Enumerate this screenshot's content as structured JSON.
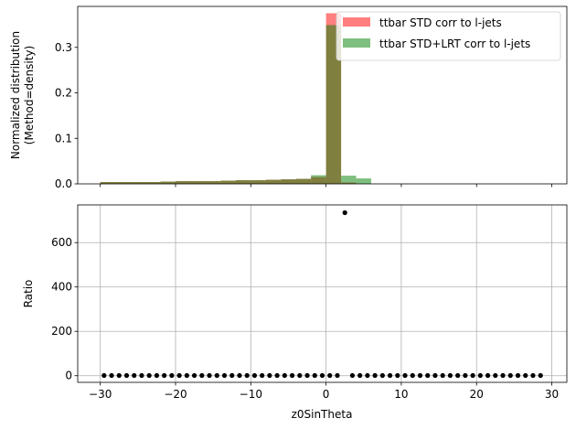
{
  "chart_data": [
    {
      "type": "bar",
      "ylabel": "Normalized distribution\n(Method=density)",
      "xlim": [
        -33,
        32
      ],
      "ylim": [
        0,
        0.39
      ],
      "yticks": [
        0.0,
        0.1,
        0.2,
        0.3
      ],
      "ytick_labels": [
        "0.0",
        "0.1",
        "0.2",
        "0.3"
      ],
      "legend": {
        "placement": "top-right"
      },
      "bin_width": 2,
      "series": [
        {
          "name": "ttbar STD corr to l-jets",
          "color": "#ff0000",
          "alpha": 0.5,
          "bin_edges": [
            -30,
            -28,
            -26,
            -24,
            -22,
            -20,
            -18,
            -16,
            -14,
            -12,
            -10,
            -8,
            -6,
            -4,
            -2,
            0,
            2,
            4
          ],
          "values": [
            0.004,
            0.004,
            0.004,
            0.004,
            0.005,
            0.006,
            0.006,
            0.006,
            0.007,
            0.008,
            0.008,
            0.009,
            0.01,
            0.011,
            0.015,
            0.375,
            0.003
          ]
        },
        {
          "name": "ttbar STD+LRT corr to l-jets",
          "color": "#008000",
          "alpha": 0.5,
          "bin_edges": [
            -30,
            -28,
            -26,
            -24,
            -22,
            -20,
            -18,
            -16,
            -14,
            -12,
            -10,
            -8,
            -6,
            -4,
            -2,
            0,
            2,
            4,
            6
          ],
          "values": [
            0.004,
            0.004,
            0.004,
            0.004,
            0.005,
            0.006,
            0.006,
            0.006,
            0.007,
            0.008,
            0.008,
            0.009,
            0.01,
            0.011,
            0.019,
            0.349,
            0.018,
            0.012
          ]
        }
      ]
    },
    {
      "type": "scatter",
      "xlabel": "z0SinTheta",
      "ylabel": "Ratio",
      "xlim": [
        -33,
        32
      ],
      "ylim": [
        -30,
        770
      ],
      "xticks": [
        -30,
        -20,
        -10,
        0,
        10,
        20,
        30
      ],
      "xtick_labels": [
        "−30",
        "−20",
        "−10",
        "0",
        "10",
        "20",
        "30"
      ],
      "yticks": [
        0,
        200,
        400,
        600
      ],
      "ytick_labels": [
        "0",
        "200",
        "400",
        "600"
      ],
      "grid": true,
      "marker_color": "#000000",
      "x": [
        -29.5,
        -28.5,
        -27.5,
        -26.5,
        -25.5,
        -24.5,
        -23.5,
        -22.5,
        -21.5,
        -20.5,
        -19.5,
        -18.5,
        -17.5,
        -16.5,
        -15.5,
        -14.5,
        -13.5,
        -12.5,
        -11.5,
        -10.5,
        -9.5,
        -8.5,
        -7.5,
        -6.5,
        -5.5,
        -4.5,
        -3.5,
        -2.5,
        -1.5,
        -0.5,
        0.5,
        1.5,
        2.5,
        3.5,
        4.5,
        5.5,
        6.5,
        7.5,
        8.5,
        9.5,
        10.5,
        11.5,
        12.5,
        13.5,
        14.5,
        15.5,
        16.5,
        17.5,
        18.5,
        19.5,
        20.5,
        21.5,
        22.5,
        23.5,
        24.5,
        25.5,
        26.5,
        27.5,
        28.5
      ],
      "y": [
        1,
        1,
        1,
        1,
        1,
        1,
        1,
        1,
        1,
        1,
        1,
        1,
        1,
        1,
        1,
        1,
        1,
        1,
        1,
        1,
        1,
        1,
        1,
        1,
        1,
        1,
        1,
        1,
        1,
        1,
        1,
        1,
        735,
        1,
        1,
        1,
        1,
        1,
        1,
        1,
        1,
        1,
        1,
        1,
        1,
        1,
        1,
        1,
        1,
        1,
        1,
        1,
        1,
        1,
        1,
        1,
        1,
        1,
        1
      ]
    }
  ]
}
